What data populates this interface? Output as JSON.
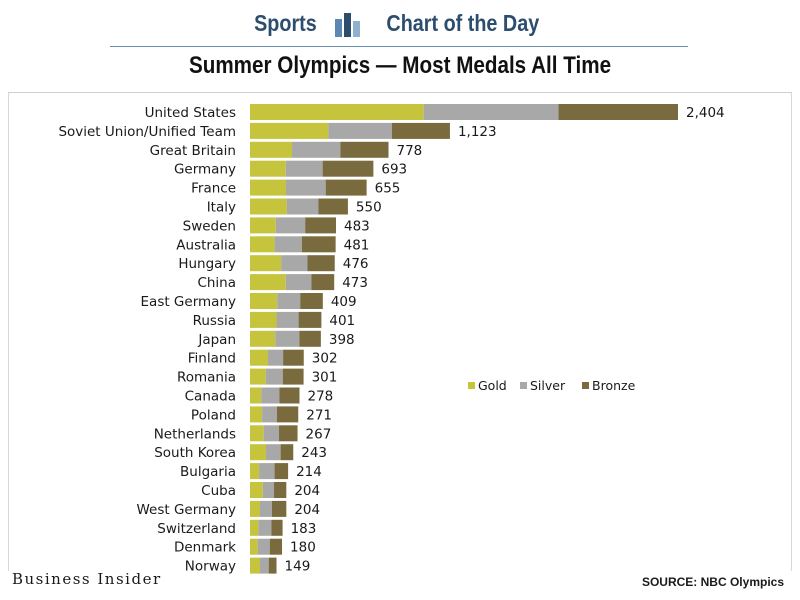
{
  "header": {
    "section_label": "Sports",
    "feature_label": "Chart of the Day"
  },
  "footer": {
    "brand": "Business Insider",
    "source": "SOURCE: NBC Olympics"
  },
  "colors": {
    "gold": "#c5c43c",
    "silver": "#a8a8a8",
    "bronze": "#7a6b3e",
    "brand_blue": "#2c4d6e"
  },
  "chart_data": {
    "type": "bar",
    "orientation": "horizontal",
    "stacked": true,
    "title": "Summer Olympics — Most Medals All Time",
    "xlabel": "",
    "ylabel": "",
    "xlim": [
      0,
      2404
    ],
    "grid": false,
    "legend_position": "right",
    "categories": [
      "United States",
      "Soviet Union/Unified Team",
      "Great Britain",
      "Germany",
      "France",
      "Italy",
      "Sweden",
      "Australia",
      "Hungary",
      "China",
      "East Germany",
      "Russia",
      "Japan",
      "Finland",
      "Romania",
      "Canada",
      "Poland",
      "Netherlands",
      "South Korea",
      "Bulgaria",
      "Cuba",
      "West Germany",
      "Switzerland",
      "Denmark",
      "Norway"
    ],
    "totals": [
      2404,
      1123,
      778,
      693,
      655,
      550,
      483,
      481,
      476,
      473,
      409,
      401,
      398,
      302,
      301,
      278,
      271,
      267,
      243,
      214,
      204,
      204,
      183,
      180,
      149
    ],
    "total_labels": [
      "2,404",
      "1,123",
      "778",
      "693",
      "655",
      "550",
      "483",
      "481",
      "476",
      "473",
      "409",
      "401",
      "398",
      "302",
      "301",
      "278",
      "271",
      "267",
      "243",
      "214",
      "204",
      "204",
      "183",
      "180",
      "149"
    ],
    "series": [
      {
        "name": "Gold",
        "color": "#c5c43c",
        "values": [
          976,
          440,
          236,
          201,
          202,
          206,
          145,
          138,
          175,
          201,
          153,
          149,
          142,
          101,
          89,
          63,
          68,
          77,
          90,
          51,
          72,
          56,
          47,
          43,
          56
        ]
      },
      {
        "name": "Silver",
        "color": "#a8a8a8",
        "values": [
          757,
          357,
          272,
          207,
          223,
          178,
          165,
          153,
          147,
          144,
          129,
          124,
          135,
          85,
          95,
          102,
          83,
          86,
          82,
          87,
          63,
          67,
          73,
          68,
          49
        ]
      },
      {
        "name": "Bronze",
        "color": "#7a6b3e",
        "values": [
          671,
          326,
          270,
          285,
          230,
          166,
          173,
          190,
          154,
          128,
          127,
          128,
          121,
          116,
          117,
          113,
          120,
          104,
          71,
          76,
          69,
          81,
          63,
          69,
          44
        ]
      }
    ]
  }
}
